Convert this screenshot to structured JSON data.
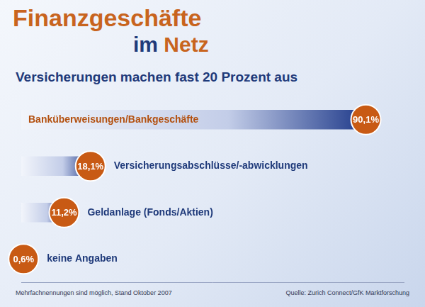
{
  "chart_data": {
    "type": "bar",
    "orientation": "horizontal",
    "title": "Finanzgeschäfte im Netz",
    "subtitle": "Versicherungen machen fast 20 Prozent aus",
    "categories": [
      "Banküberweisungen/Bankgeschäfte",
      "Versicherungsabschlüsse/-abwicklungen",
      "Geldanlage (Fonds/Aktien)",
      "keine Angaben"
    ],
    "values": [
      90.1,
      18.1,
      11.2,
      0.6
    ],
    "value_labels": [
      "90,1%",
      "18,1%",
      "11,2%",
      "0,6%"
    ],
    "data_labels": true,
    "color": "#1f3a8a",
    "xlim": [
      0,
      100
    ],
    "grid": false,
    "tick_labels": false,
    "annotations": [
      "Mehrfachnennungen sind möglich, Stand Oktober 2007",
      "Quelle: Zurich Connect/GfK Marktforschung"
    ]
  }
}
